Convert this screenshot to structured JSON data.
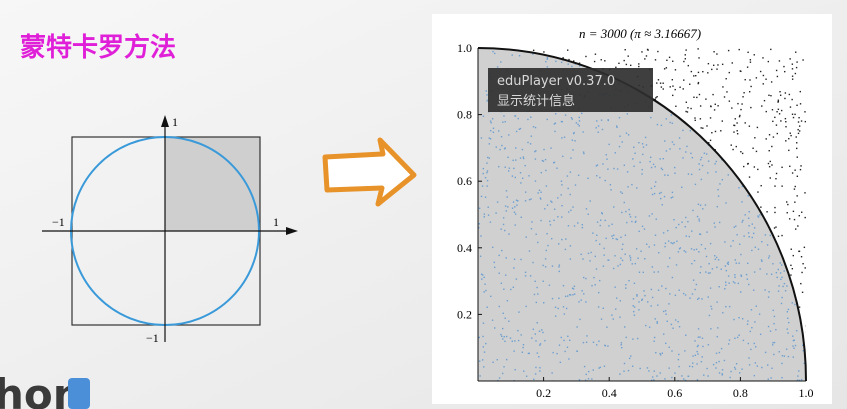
{
  "slide": {
    "title": "蒙特卡罗方法"
  },
  "diagram": {
    "labels": {
      "y_top": "1",
      "x_left": "−1",
      "x_right": "1",
      "y_bottom": "−1"
    }
  },
  "chart": {
    "title": "n = 3000 (π ≈ 3.16667)",
    "xlim": [
      0,
      1
    ],
    "ylim": [
      0,
      1
    ],
    "xticks": [
      0.2,
      0.4,
      0.6,
      0.8,
      {
        "value": 1,
        "label": "1.0"
      }
    ],
    "yticks": [
      0.2,
      0.4,
      0.6,
      0.8,
      {
        "value": 1,
        "label": "1.0"
      }
    ]
  },
  "tooltip": {
    "app": "eduPlayer v0.37.0",
    "action": "显示统计信息"
  },
  "logo": {
    "text": "hon"
  }
}
